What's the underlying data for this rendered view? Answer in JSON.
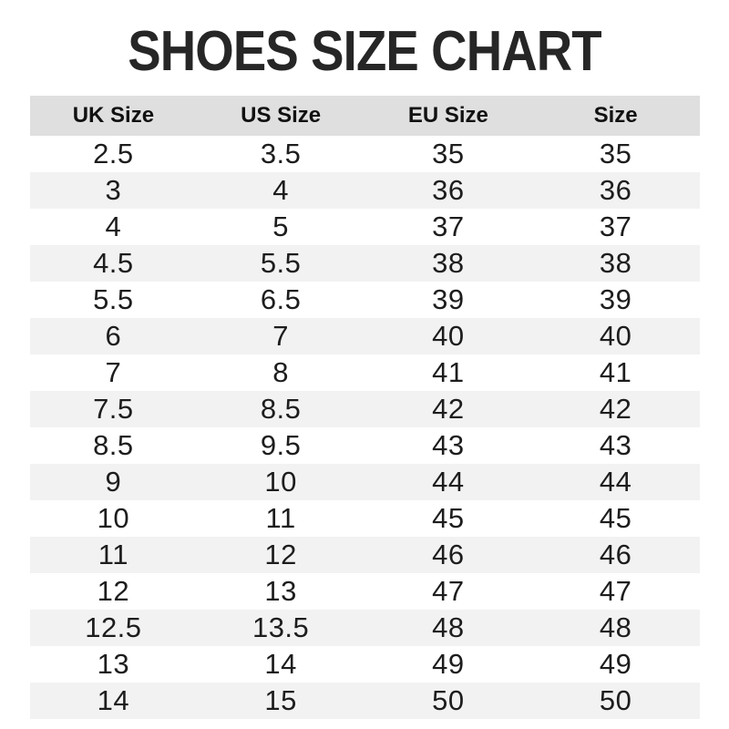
{
  "title": "SHOES SIZE CHART",
  "table": {
    "headers": [
      "UK Size",
      "US Size",
      "EU Size",
      "Size"
    ],
    "rows": [
      [
        "2.5",
        "3.5",
        "35",
        "35"
      ],
      [
        "3",
        "4",
        "36",
        "36"
      ],
      [
        "4",
        "5",
        "37",
        "37"
      ],
      [
        "4.5",
        "5.5",
        "38",
        "38"
      ],
      [
        "5.5",
        "6.5",
        "39",
        "39"
      ],
      [
        "6",
        "7",
        "40",
        "40"
      ],
      [
        "7",
        "8",
        "41",
        "41"
      ],
      [
        "7.5",
        "8.5",
        "42",
        "42"
      ],
      [
        "8.5",
        "9.5",
        "43",
        "43"
      ],
      [
        "9",
        "10",
        "44",
        "44"
      ],
      [
        "10",
        "11",
        "45",
        "45"
      ],
      [
        "11",
        "12",
        "46",
        "46"
      ],
      [
        "12",
        "13",
        "47",
        "47"
      ],
      [
        "12.5",
        "13.5",
        "48",
        "48"
      ],
      [
        "13",
        "14",
        "49",
        "49"
      ],
      [
        "14",
        "15",
        "50",
        "50"
      ]
    ]
  },
  "colors": {
    "header_bg": "#dfdfdf",
    "row_alt_bg": "#f2f2f2",
    "row_bg": "#ffffff",
    "text": "#1d1d1d",
    "title_text": "#262626"
  },
  "chart_data": {
    "type": "table",
    "title": "SHOES SIZE CHART",
    "columns": [
      "UK Size",
      "US Size",
      "EU Size",
      "Size"
    ],
    "rows": [
      [
        "2.5",
        "3.5",
        "35",
        "35"
      ],
      [
        "3",
        "4",
        "36",
        "36"
      ],
      [
        "4",
        "5",
        "37",
        "37"
      ],
      [
        "4.5",
        "5.5",
        "38",
        "38"
      ],
      [
        "5.5",
        "6.5",
        "39",
        "39"
      ],
      [
        "6",
        "7",
        "40",
        "40"
      ],
      [
        "7",
        "8",
        "41",
        "41"
      ],
      [
        "7.5",
        "8.5",
        "42",
        "42"
      ],
      [
        "8.5",
        "9.5",
        "43",
        "43"
      ],
      [
        "9",
        "10",
        "44",
        "44"
      ],
      [
        "10",
        "11",
        "45",
        "45"
      ],
      [
        "11",
        "12",
        "46",
        "46"
      ],
      [
        "12",
        "13",
        "47",
        "47"
      ],
      [
        "12.5",
        "13.5",
        "48",
        "48"
      ],
      [
        "13",
        "14",
        "49",
        "49"
      ],
      [
        "14",
        "15",
        "50",
        "50"
      ]
    ],
    "layout": {
      "header_background": "#dfdfdf",
      "alternating_rows": true,
      "grid": false,
      "text_align": "center"
    }
  }
}
